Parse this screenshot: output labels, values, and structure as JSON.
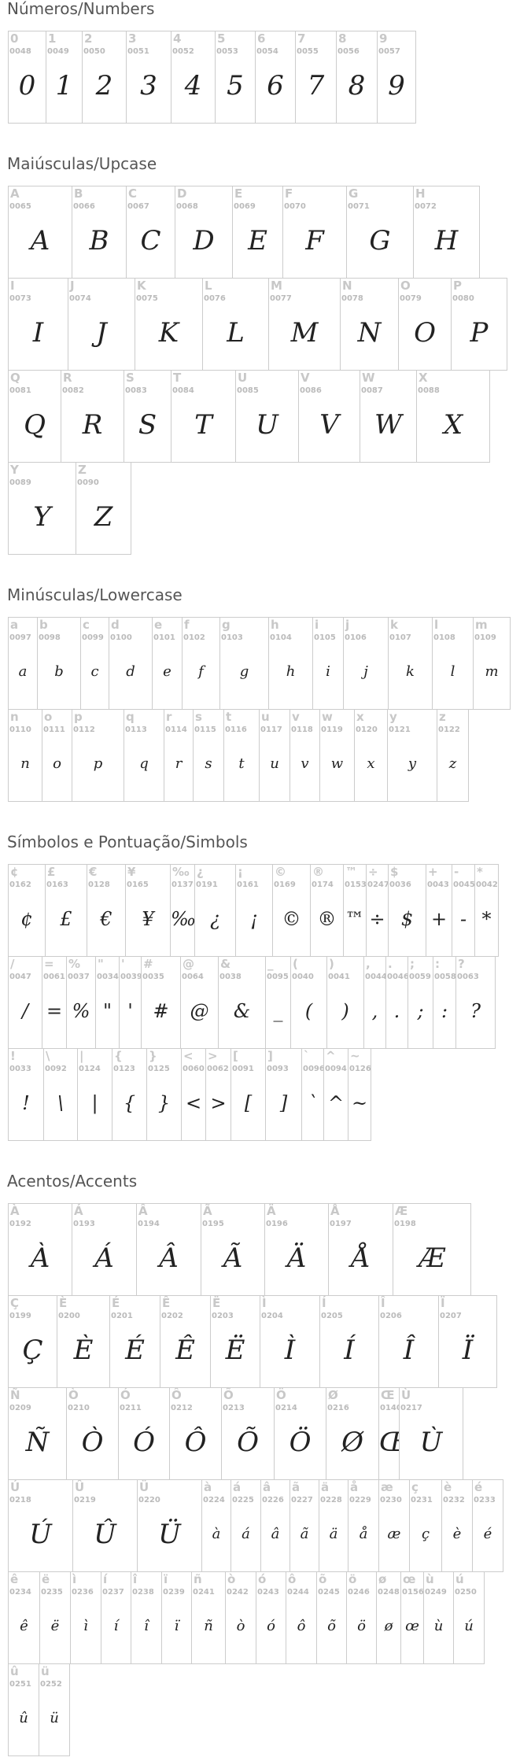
{
  "sections": [
    {
      "id": "numbers",
      "title": "Números/Numbers",
      "rows": [
        [
          {
            "c": "0",
            "code": "0048"
          },
          {
            "c": "1",
            "code": "0049"
          },
          {
            "c": "2",
            "code": "0050"
          },
          {
            "c": "3",
            "code": "0051"
          },
          {
            "c": "4",
            "code": "0052"
          },
          {
            "c": "5",
            "code": "0053"
          },
          {
            "c": "6",
            "code": "0054"
          },
          {
            "c": "7",
            "code": "0055"
          },
          {
            "c": "8",
            "code": "0056"
          },
          {
            "c": "9",
            "code": "0057"
          }
        ]
      ]
    },
    {
      "id": "upcase",
      "title": "Maiúsculas/Upcase",
      "rows": [
        [
          {
            "c": "A",
            "code": "0065"
          },
          {
            "c": "B",
            "code": "0066"
          },
          {
            "c": "C",
            "code": "0067"
          },
          {
            "c": "D",
            "code": "0068"
          },
          {
            "c": "E",
            "code": "0069"
          },
          {
            "c": "F",
            "code": "0070"
          },
          {
            "c": "G",
            "code": "0071"
          },
          {
            "c": "H",
            "code": "0072"
          }
        ],
        [
          {
            "c": "I",
            "code": "0073"
          },
          {
            "c": "J",
            "code": "0074"
          },
          {
            "c": "K",
            "code": "0075"
          },
          {
            "c": "L",
            "code": "0076"
          },
          {
            "c": "M",
            "code": "0077"
          },
          {
            "c": "N",
            "code": "0078"
          },
          {
            "c": "O",
            "code": "0079"
          },
          {
            "c": "P",
            "code": "0080"
          }
        ],
        [
          {
            "c": "Q",
            "code": "0081"
          },
          {
            "c": "R",
            "code": "0082"
          },
          {
            "c": "S",
            "code": "0083"
          },
          {
            "c": "T",
            "code": "0084"
          },
          {
            "c": "U",
            "code": "0085"
          },
          {
            "c": "V",
            "code": "0086"
          },
          {
            "c": "W",
            "code": "0087"
          },
          {
            "c": "X",
            "code": "0088"
          }
        ],
        [
          {
            "c": "Y",
            "code": "0089"
          },
          {
            "c": "Z",
            "code": "0090"
          }
        ]
      ]
    },
    {
      "id": "lower",
      "title": "Minúsculas/Lowercase",
      "rows": [
        [
          {
            "c": "a",
            "code": "0097"
          },
          {
            "c": "b",
            "code": "0098"
          },
          {
            "c": "c",
            "code": "0099"
          },
          {
            "c": "d",
            "code": "0100"
          },
          {
            "c": "e",
            "code": "0101"
          },
          {
            "c": "f",
            "code": "0102"
          },
          {
            "c": "g",
            "code": "0103"
          },
          {
            "c": "h",
            "code": "0104"
          },
          {
            "c": "i",
            "code": "0105"
          },
          {
            "c": "j",
            "code": "0106"
          },
          {
            "c": "k",
            "code": "0107"
          },
          {
            "c": "l",
            "code": "0108"
          },
          {
            "c": "m",
            "code": "0109"
          }
        ],
        [
          {
            "c": "n",
            "code": "0110"
          },
          {
            "c": "o",
            "code": "0111"
          },
          {
            "c": "p",
            "code": "0112"
          },
          {
            "c": "q",
            "code": "0113"
          },
          {
            "c": "r",
            "code": "0114"
          },
          {
            "c": "s",
            "code": "0115"
          },
          {
            "c": "t",
            "code": "0116"
          },
          {
            "c": "u",
            "code": "0117"
          },
          {
            "c": "v",
            "code": "0118"
          },
          {
            "c": "w",
            "code": "0119"
          },
          {
            "c": "x",
            "code": "0120"
          },
          {
            "c": "y",
            "code": "0121"
          },
          {
            "c": "z",
            "code": "0122"
          }
        ]
      ]
    },
    {
      "id": "symbols",
      "title": "Símbolos e Pontuação/Simbols",
      "rows": [
        [
          {
            "c": "¢",
            "code": "0162"
          },
          {
            "c": "£",
            "code": "0163"
          },
          {
            "c": "€",
            "code": "0128"
          },
          {
            "c": "¥",
            "code": "0165"
          },
          {
            "c": "‰",
            "code": "0137"
          },
          {
            "c": "¿",
            "code": "0191"
          },
          {
            "c": "¡",
            "code": "0161"
          },
          {
            "c": "©",
            "code": "0169"
          },
          {
            "c": "®",
            "code": "0174"
          },
          {
            "c": "™",
            "code": "0153"
          },
          {
            "c": "÷",
            "code": "0247"
          },
          {
            "c": "$",
            "code": "0036"
          },
          {
            "c": "+",
            "code": "0043"
          },
          {
            "c": "-",
            "code": "0045"
          },
          {
            "c": "*",
            "code": "0042"
          }
        ],
        [
          {
            "c": "/",
            "code": "0047"
          },
          {
            "c": "=",
            "code": "0061"
          },
          {
            "c": "%",
            "code": "0037"
          },
          {
            "c": "\"",
            "code": "0034"
          },
          {
            "c": "'",
            "code": "0039"
          },
          {
            "c": "#",
            "code": "0035"
          },
          {
            "c": "@",
            "code": "0064"
          },
          {
            "c": "&",
            "code": "0038"
          },
          {
            "c": "_",
            "code": "0095"
          },
          {
            "c": "(",
            "code": "0040"
          },
          {
            "c": ")",
            "code": "0041"
          },
          {
            "c": ",",
            "code": "0044"
          },
          {
            "c": ".",
            "code": "0046"
          },
          {
            "c": ";",
            "code": "0059"
          },
          {
            "c": ":",
            "code": "0058"
          },
          {
            "c": "?",
            "code": "0063"
          }
        ],
        [
          {
            "c": "!",
            "code": "0033"
          },
          {
            "c": "\\",
            "code": "0092"
          },
          {
            "c": "|",
            "code": "0124"
          },
          {
            "c": "{",
            "code": "0123"
          },
          {
            "c": "}",
            "code": "0125"
          },
          {
            "c": "<",
            "code": "0060"
          },
          {
            "c": ">",
            "code": "0062"
          },
          {
            "c": "[",
            "code": "0091"
          },
          {
            "c": "]",
            "code": "0093"
          },
          {
            "c": "`",
            "code": "0096"
          },
          {
            "c": "^",
            "code": "0094"
          },
          {
            "c": "~",
            "code": "0126"
          }
        ]
      ]
    },
    {
      "id": "accents",
      "title": "Acentos/Accents",
      "rows": [
        [
          {
            "c": "À",
            "code": "0192"
          },
          {
            "c": "Á",
            "code": "0193"
          },
          {
            "c": "Â",
            "code": "0194"
          },
          {
            "c": "Ã",
            "code": "0195"
          },
          {
            "c": "Ä",
            "code": "0196"
          },
          {
            "c": "Å",
            "code": "0197"
          },
          {
            "c": "Æ",
            "code": "0198"
          }
        ],
        [
          {
            "c": "Ç",
            "code": "0199"
          },
          {
            "c": "È",
            "code": "0200"
          },
          {
            "c": "É",
            "code": "0201"
          },
          {
            "c": "Ê",
            "code": "0202"
          },
          {
            "c": "Ë",
            "code": "0203"
          },
          {
            "c": "Ì",
            "code": "0204"
          },
          {
            "c": "Í",
            "code": "0205"
          },
          {
            "c": "Î",
            "code": "0206"
          },
          {
            "c": "Ï",
            "code": "0207"
          }
        ],
        [
          {
            "c": "Ñ",
            "code": "0209"
          },
          {
            "c": "Ò",
            "code": "0210"
          },
          {
            "c": "Ó",
            "code": "0211"
          },
          {
            "c": "Ô",
            "code": "0212"
          },
          {
            "c": "Õ",
            "code": "0213"
          },
          {
            "c": "Ö",
            "code": "0214"
          },
          {
            "c": "Ø",
            "code": "0216"
          },
          {
            "c": "Œ",
            "code": "0140"
          },
          {
            "c": "Ù",
            "code": "0217"
          }
        ],
        [
          {
            "c": "Ú",
            "code": "0218"
          },
          {
            "c": "Û",
            "code": "0219"
          },
          {
            "c": "Ü",
            "code": "0220"
          },
          {
            "c": "à",
            "code": "0224"
          },
          {
            "c": "á",
            "code": "0225"
          },
          {
            "c": "â",
            "code": "0226"
          },
          {
            "c": "ã",
            "code": "0227"
          },
          {
            "c": "ä",
            "code": "0228"
          },
          {
            "c": "å",
            "code": "0229"
          },
          {
            "c": "æ",
            "code": "0230"
          },
          {
            "c": "ç",
            "code": "0231"
          },
          {
            "c": "è",
            "code": "0232"
          },
          {
            "c": "é",
            "code": "0233"
          }
        ],
        [
          {
            "c": "ê",
            "code": "0234"
          },
          {
            "c": "ë",
            "code": "0235"
          },
          {
            "c": "ì",
            "code": "0236"
          },
          {
            "c": "í",
            "code": "0237"
          },
          {
            "c": "î",
            "code": "0238"
          },
          {
            "c": "ï",
            "code": "0239"
          },
          {
            "c": "ñ",
            "code": "0241"
          },
          {
            "c": "ò",
            "code": "0242"
          },
          {
            "c": "ó",
            "code": "0243"
          },
          {
            "c": "ô",
            "code": "0244"
          },
          {
            "c": "õ",
            "code": "0245"
          },
          {
            "c": "ö",
            "code": "0246"
          },
          {
            "c": "ø",
            "code": "0248"
          },
          {
            "c": "œ",
            "code": "0156"
          },
          {
            "c": "ù",
            "code": "0249"
          },
          {
            "c": "ú",
            "code": "0250"
          }
        ],
        [
          {
            "c": "û",
            "code": "0251"
          },
          {
            "c": "ü",
            "code": "0252"
          }
        ]
      ]
    }
  ]
}
